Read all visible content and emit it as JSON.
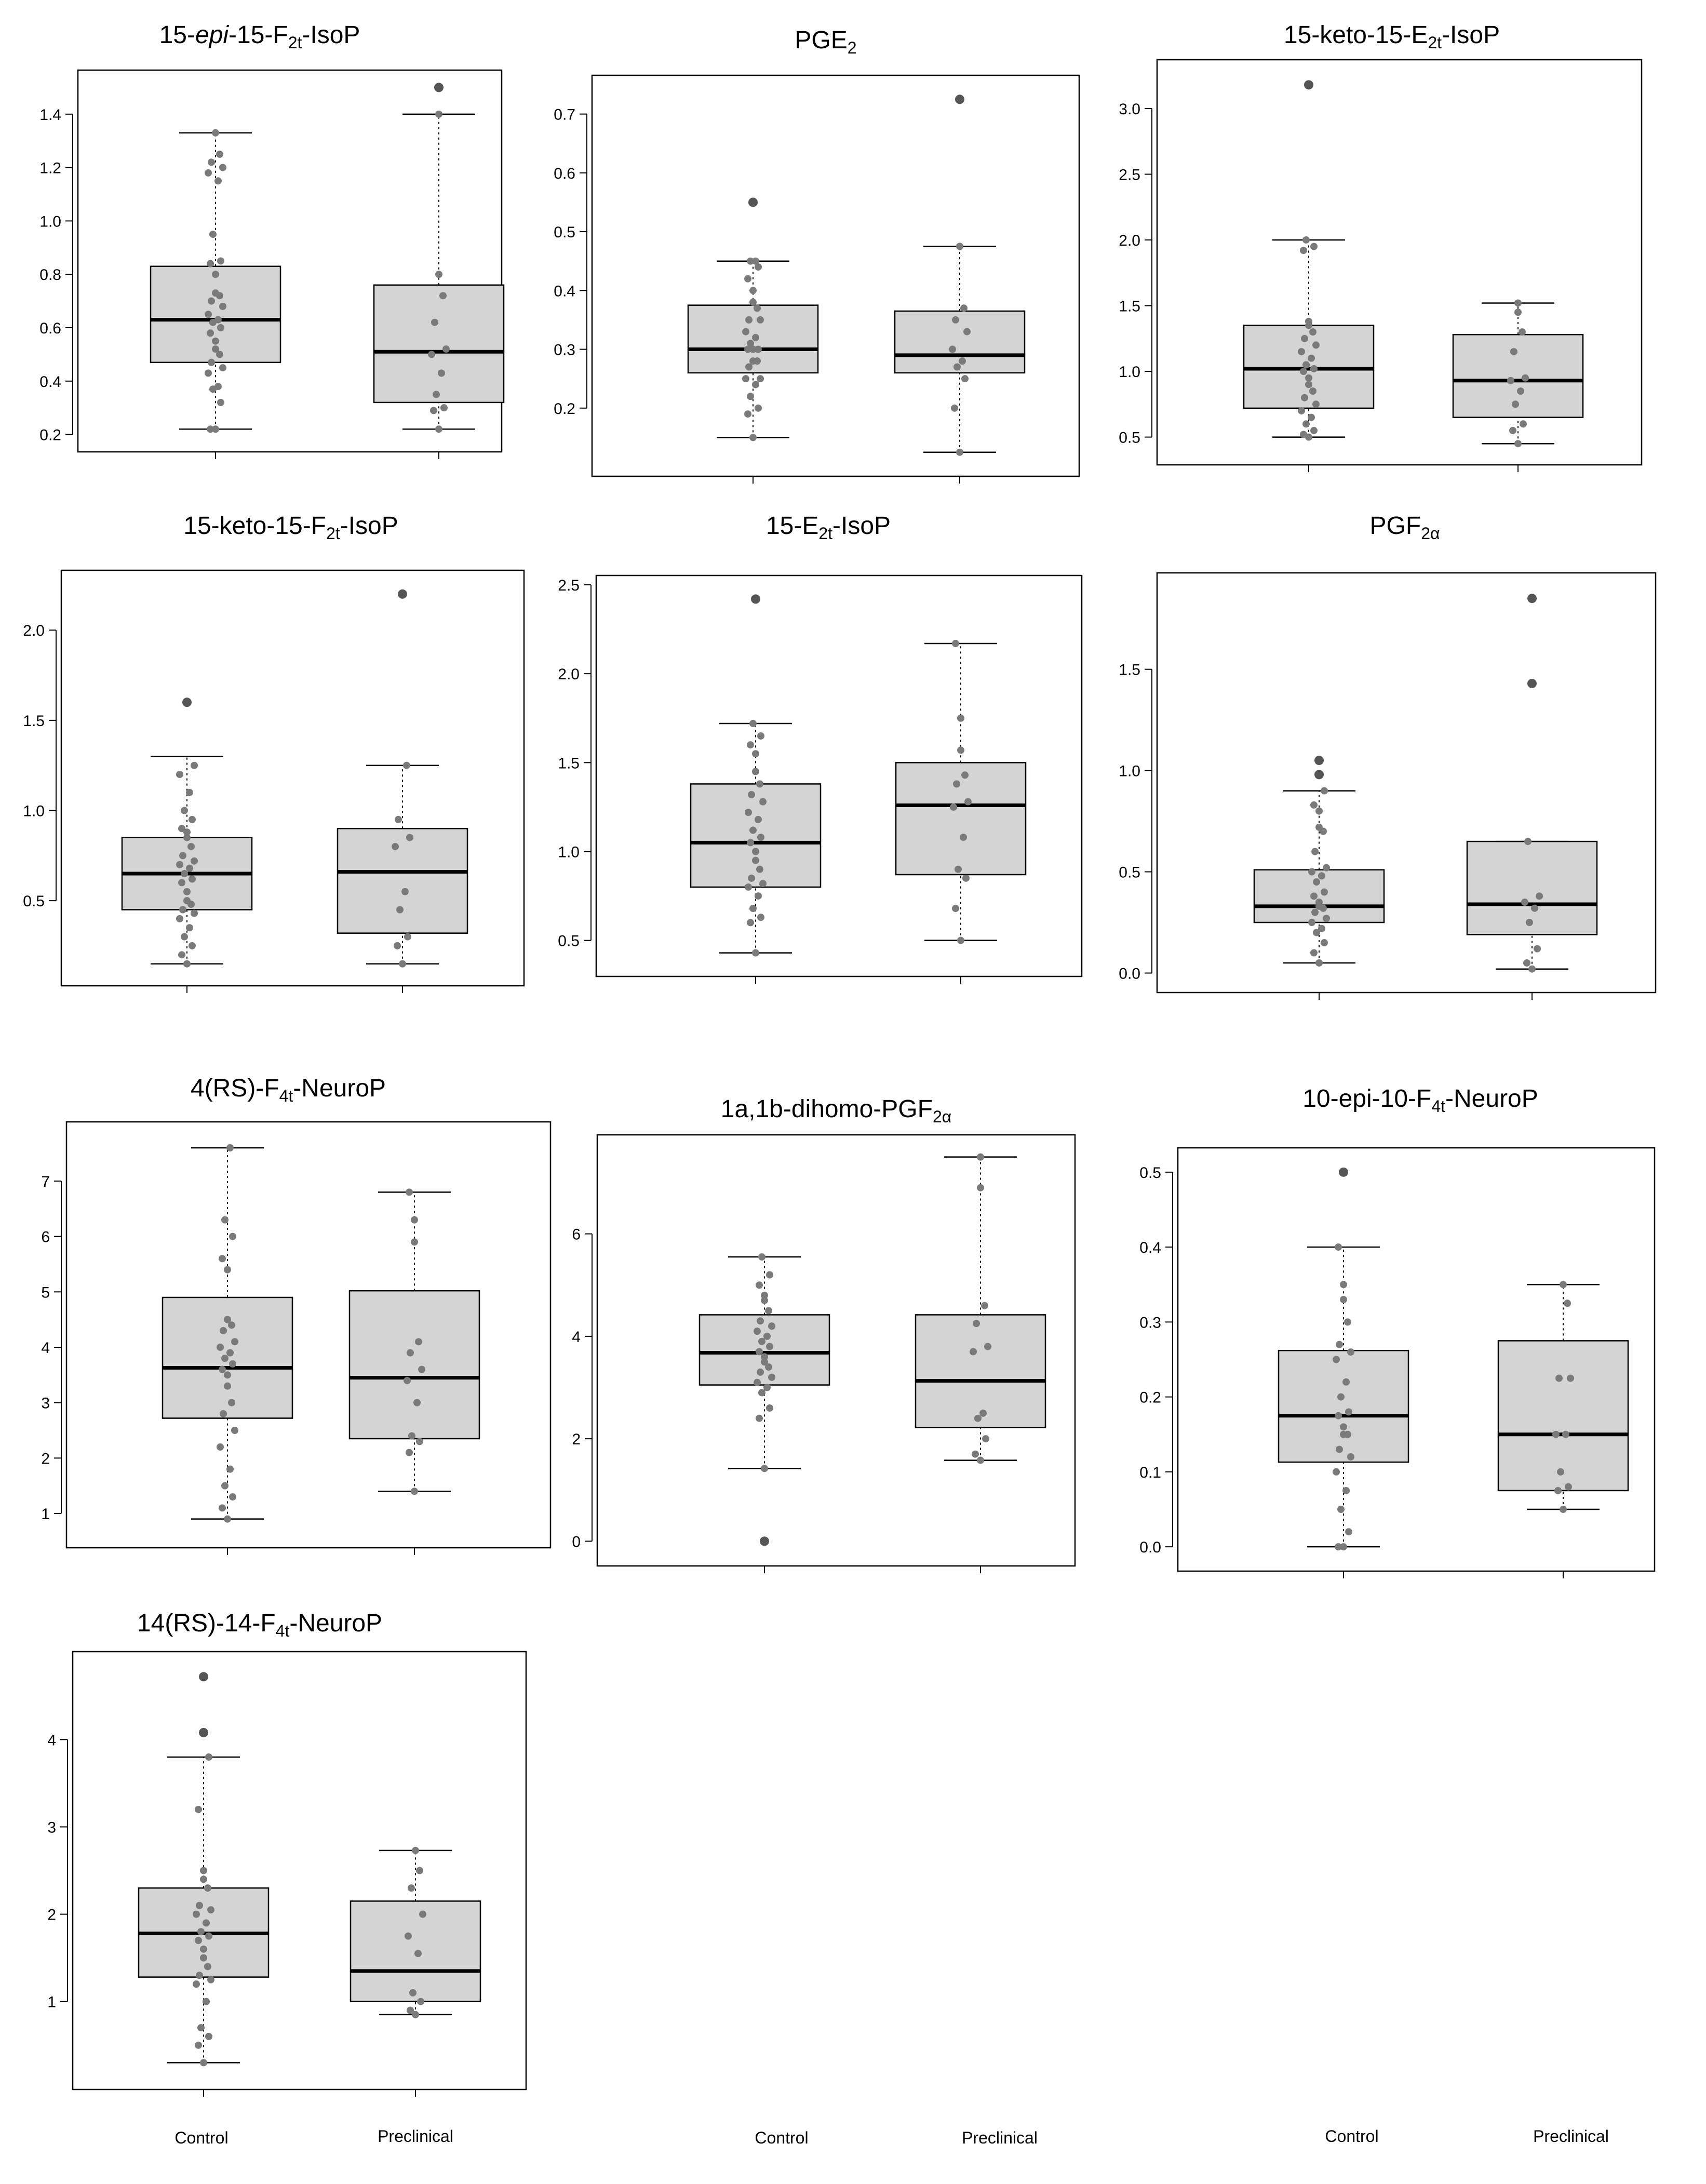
{
  "figure": {
    "group_labels": [
      "Control",
      "Preclinical"
    ]
  },
  "chart_data": [
    {
      "type": "box",
      "title": "15-epi-15-F2t-IsoP",
      "title_parts": [
        {
          "t": "15-"
        },
        {
          "t": "epi",
          "s": "em"
        },
        {
          "t": "-15-F"
        },
        {
          "t": "2t",
          "s": "sub"
        },
        {
          "t": "-IsoP"
        }
      ],
      "yticks": [
        0.2,
        0.4,
        0.6,
        0.8,
        1.0,
        1.2,
        1.4
      ],
      "ylim": [
        0.17,
        1.53
      ],
      "groups": [
        {
          "name": "Control",
          "q1": 0.47,
          "median": 0.63,
          "q3": 0.83,
          "whisker_low": 0.22,
          "whisker_high": 1.33,
          "outliers": [],
          "points": [
            0.22,
            0.22,
            0.32,
            0.37,
            0.38,
            0.43,
            0.45,
            0.47,
            0.5,
            0.52,
            0.55,
            0.58,
            0.6,
            0.62,
            0.63,
            0.65,
            0.68,
            0.7,
            0.72,
            0.73,
            0.8,
            0.84,
            0.85,
            0.95,
            1.15,
            1.18,
            1.2,
            1.22,
            1.25,
            1.33
          ]
        },
        {
          "name": "Preclinical",
          "q1": 0.32,
          "median": 0.51,
          "q3": 0.76,
          "whisker_low": 0.22,
          "whisker_high": 1.4,
          "outliers": [
            1.5
          ],
          "points": [
            0.22,
            0.29,
            0.3,
            0.35,
            0.43,
            0.5,
            0.52,
            0.62,
            0.72,
            0.8,
            1.4
          ]
        }
      ]
    },
    {
      "type": "box",
      "title": "PGE2",
      "title_parts": [
        {
          "t": "PGE"
        },
        {
          "t": "2",
          "s": "sub"
        }
      ],
      "yticks": [
        0.2,
        0.3,
        0.4,
        0.5,
        0.6,
        0.7
      ],
      "ylim": [
        0.1,
        0.75
      ],
      "groups": [
        {
          "name": "Control",
          "q1": 0.26,
          "median": 0.3,
          "q3": 0.375,
          "whisker_low": 0.15,
          "whisker_high": 0.45,
          "outliers": [
            0.55
          ],
          "points": [
            0.15,
            0.19,
            0.2,
            0.22,
            0.24,
            0.25,
            0.25,
            0.27,
            0.28,
            0.28,
            0.3,
            0.3,
            0.3,
            0.31,
            0.32,
            0.33,
            0.35,
            0.35,
            0.37,
            0.38,
            0.4,
            0.42,
            0.44,
            0.45,
            0.45
          ]
        },
        {
          "name": "Preclinical",
          "q1": 0.26,
          "median": 0.29,
          "q3": 0.365,
          "whisker_low": 0.125,
          "whisker_high": 0.475,
          "outliers": [
            0.725
          ],
          "points": [
            0.125,
            0.2,
            0.25,
            0.27,
            0.28,
            0.3,
            0.33,
            0.35,
            0.37,
            0.475
          ]
        }
      ]
    },
    {
      "type": "box",
      "title": "15-keto-15-E2t-IsoP",
      "title_parts": [
        {
          "t": "15-keto-15-E"
        },
        {
          "t": "2t",
          "s": "sub"
        },
        {
          "t": "-IsoP"
        }
      ],
      "yticks": [
        0.5,
        1.0,
        1.5,
        2.0,
        2.5,
        3.0
      ],
      "ylim": [
        0.36,
        3.3
      ],
      "groups": [
        {
          "name": "Control",
          "q1": 0.72,
          "median": 1.02,
          "q3": 1.35,
          "whisker_low": 0.5,
          "whisker_high": 2.0,
          "outliers": [
            3.18
          ],
          "points": [
            0.5,
            0.52,
            0.55,
            0.6,
            0.65,
            0.7,
            0.75,
            0.8,
            0.85,
            0.9,
            0.95,
            1.0,
            1.02,
            1.05,
            1.1,
            1.15,
            1.2,
            1.25,
            1.3,
            1.35,
            1.38,
            1.92,
            1.95,
            2.0
          ]
        },
        {
          "name": "Preclinical",
          "q1": 0.65,
          "median": 0.93,
          "q3": 1.28,
          "whisker_low": 0.45,
          "whisker_high": 1.52,
          "outliers": [],
          "points": [
            0.45,
            0.55,
            0.6,
            0.75,
            0.85,
            0.93,
            0.95,
            1.15,
            1.3,
            1.45,
            1.52
          ]
        }
      ]
    },
    {
      "type": "box",
      "title": "15-keto-15-F2t-IsoP",
      "title_parts": [
        {
          "t": "15-keto-15-F"
        },
        {
          "t": "2t",
          "s": "sub"
        },
        {
          "t": "-IsoP"
        }
      ],
      "yticks": [
        0.5,
        1.0,
        1.5,
        2.0
      ],
      "ylim": [
        0.08,
        2.28
      ],
      "groups": [
        {
          "name": "Control",
          "q1": 0.45,
          "median": 0.65,
          "q3": 0.85,
          "whisker_low": 0.15,
          "whisker_high": 1.3,
          "outliers": [
            1.6
          ],
          "points": [
            0.15,
            0.2,
            0.25,
            0.3,
            0.35,
            0.4,
            0.43,
            0.45,
            0.48,
            0.5,
            0.55,
            0.6,
            0.62,
            0.65,
            0.68,
            0.7,
            0.72,
            0.75,
            0.8,
            0.85,
            0.88,
            0.9,
            0.95,
            1.0,
            1.1,
            1.2,
            1.25
          ]
        },
        {
          "name": "Preclinical",
          "q1": 0.32,
          "median": 0.66,
          "q3": 0.9,
          "whisker_low": 0.15,
          "whisker_high": 1.25,
          "outliers": [
            2.2
          ],
          "points": [
            0.15,
            0.25,
            0.3,
            0.45,
            0.55,
            0.8,
            0.85,
            0.95,
            1.25
          ]
        }
      ]
    },
    {
      "type": "box",
      "title": "15-E2t-IsoP",
      "title_parts": [
        {
          "t": "15-E"
        },
        {
          "t": "2t",
          "s": "sub"
        },
        {
          "t": "-IsoP"
        }
      ],
      "yticks": [
        0.5,
        1.0,
        1.5,
        2.0,
        2.5
      ],
      "ylim": [
        0.35,
        2.5
      ],
      "groups": [
        {
          "name": "Control",
          "q1": 0.8,
          "median": 1.05,
          "q3": 1.38,
          "whisker_low": 0.43,
          "whisker_high": 1.72,
          "outliers": [
            2.42
          ],
          "points": [
            0.43,
            0.6,
            0.63,
            0.68,
            0.75,
            0.8,
            0.82,
            0.85,
            0.9,
            0.95,
            1.0,
            1.05,
            1.08,
            1.12,
            1.18,
            1.22,
            1.28,
            1.32,
            1.38,
            1.45,
            1.55,
            1.6,
            1.65,
            1.72
          ]
        },
        {
          "name": "Preclinical",
          "q1": 0.87,
          "median": 1.26,
          "q3": 1.5,
          "whisker_low": 0.5,
          "whisker_high": 2.17,
          "outliers": [],
          "points": [
            0.5,
            0.68,
            0.85,
            0.9,
            1.08,
            1.25,
            1.28,
            1.38,
            1.43,
            1.57,
            1.75,
            2.17
          ]
        }
      ]
    },
    {
      "type": "box",
      "title": "PGF2α",
      "title_parts": [
        {
          "t": "PGF"
        },
        {
          "t": "2α",
          "s": "sub"
        }
      ],
      "yticks": [
        0.0,
        0.5,
        1.0,
        1.5
      ],
      "ylim": [
        -0.05,
        1.93
      ],
      "groups": [
        {
          "name": "Control",
          "q1": 0.25,
          "median": 0.33,
          "q3": 0.51,
          "whisker_low": 0.05,
          "whisker_high": 0.9,
          "outliers": [
            1.05,
            0.98
          ],
          "points": [
            0.05,
            0.1,
            0.15,
            0.2,
            0.22,
            0.25,
            0.27,
            0.3,
            0.32,
            0.33,
            0.35,
            0.38,
            0.4,
            0.45,
            0.48,
            0.5,
            0.52,
            0.6,
            0.7,
            0.72,
            0.8,
            0.83,
            0.9
          ]
        },
        {
          "name": "Preclinical",
          "q1": 0.19,
          "median": 0.34,
          "q3": 0.65,
          "whisker_low": 0.02,
          "whisker_high": 0.65,
          "outliers": [
            1.43,
            1.85
          ],
          "points": [
            0.02,
            0.05,
            0.12,
            0.25,
            0.32,
            0.35,
            0.38,
            0.65
          ]
        }
      ]
    },
    {
      "type": "box",
      "title": "4(RS)-F4t-NeuroP",
      "title_parts": [
        {
          "t": "4(RS)-F"
        },
        {
          "t": "4t",
          "s": "sub"
        },
        {
          "t": "-NeuroP"
        }
      ],
      "yticks": [
        1,
        2,
        3,
        4,
        5,
        6,
        7
      ],
      "ylim": [
        0.55,
        7.9
      ],
      "groups": [
        {
          "name": "Control",
          "q1": 2.72,
          "median": 3.63,
          "q3": 4.9,
          "whisker_low": 0.9,
          "whisker_high": 7.6,
          "outliers": [],
          "points": [
            0.9,
            1.1,
            1.3,
            1.5,
            1.8,
            2.2,
            2.5,
            2.8,
            3.0,
            3.3,
            3.5,
            3.6,
            3.7,
            3.8,
            3.9,
            4.0,
            4.1,
            4.3,
            4.4,
            4.5,
            5.4,
            5.6,
            6.0,
            6.3,
            7.6
          ]
        },
        {
          "name": "Preclinical",
          "q1": 2.35,
          "median": 3.45,
          "q3": 5.02,
          "whisker_low": 1.4,
          "whisker_high": 6.8,
          "outliers": [],
          "points": [
            1.4,
            2.1,
            2.3,
            2.4,
            3.0,
            3.4,
            3.6,
            3.9,
            4.1,
            5.9,
            6.3,
            6.8
          ]
        }
      ]
    },
    {
      "type": "box",
      "title": "1a,1b-dihomo-PGF2α",
      "title_parts": [
        {
          "t": "1a,1b-dihomo-PGF"
        },
        {
          "t": "2α",
          "s": "sub"
        }
      ],
      "yticks": [
        0,
        2,
        4,
        6
      ],
      "ylim": [
        -0.3,
        7.75
      ],
      "groups": [
        {
          "name": "Control",
          "q1": 3.05,
          "median": 3.68,
          "q3": 4.42,
          "whisker_low": 1.42,
          "whisker_high": 5.55,
          "outliers": [
            0.0
          ],
          "points": [
            1.42,
            2.4,
            2.6,
            2.9,
            3.0,
            3.1,
            3.2,
            3.3,
            3.4,
            3.5,
            3.6,
            3.7,
            3.8,
            3.9,
            4.0,
            4.1,
            4.2,
            4.3,
            4.5,
            4.7,
            4.8,
            5.0,
            5.2,
            5.55
          ]
        },
        {
          "name": "Preclinical",
          "q1": 2.22,
          "median": 3.13,
          "q3": 4.42,
          "whisker_low": 1.58,
          "whisker_high": 7.5,
          "outliers": [],
          "points": [
            1.58,
            1.7,
            2.0,
            2.4,
            2.5,
            3.7,
            3.8,
            4.25,
            4.6,
            6.9,
            7.5
          ]
        }
      ]
    },
    {
      "type": "box",
      "title": "10-epi-10-F4t-NeuroP",
      "title_parts": [
        {
          "t": "10-epi-10-F"
        },
        {
          "t": "4t",
          "s": "sub"
        },
        {
          "t": "-NeuroP"
        }
      ],
      "yticks": [
        0.0,
        0.1,
        0.2,
        0.3,
        0.4,
        0.5
      ],
      "ylim": [
        -0.02,
        0.52
      ],
      "groups": [
        {
          "name": "Control",
          "q1": 0.113,
          "median": 0.175,
          "q3": 0.262,
          "whisker_low": 0.0,
          "whisker_high": 0.4,
          "outliers": [
            0.5
          ],
          "points": [
            0.0,
            0.0,
            0.02,
            0.05,
            0.075,
            0.1,
            0.12,
            0.13,
            0.15,
            0.15,
            0.16,
            0.175,
            0.18,
            0.2,
            0.22,
            0.25,
            0.26,
            0.27,
            0.3,
            0.33,
            0.35,
            0.4
          ]
        },
        {
          "name": "Preclinical",
          "q1": 0.075,
          "median": 0.15,
          "q3": 0.275,
          "whisker_low": 0.05,
          "whisker_high": 0.35,
          "outliers": [],
          "points": [
            0.05,
            0.075,
            0.08,
            0.1,
            0.15,
            0.15,
            0.225,
            0.225,
            0.325,
            0.35
          ]
        }
      ]
    },
    {
      "type": "box",
      "title": "14(RS)-14-F4t-NeuroP",
      "title_parts": [
        {
          "t": "14(RS)-14-F"
        },
        {
          "t": "4t",
          "s": "sub"
        },
        {
          "t": "-NeuroP"
        }
      ],
      "yticks": [
        1,
        2,
        3,
        4
      ],
      "ylim": [
        0.1,
        4.9
      ],
      "groups": [
        {
          "name": "Control",
          "q1": 1.28,
          "median": 1.78,
          "q3": 2.3,
          "whisker_low": 0.3,
          "whisker_high": 3.8,
          "outliers": [
            4.72,
            4.08
          ],
          "points": [
            0.3,
            0.5,
            0.6,
            0.7,
            1.0,
            1.2,
            1.25,
            1.3,
            1.4,
            1.5,
            1.6,
            1.7,
            1.75,
            1.8,
            1.9,
            2.0,
            2.05,
            2.1,
            2.3,
            2.4,
            2.5,
            3.2,
            3.8
          ]
        },
        {
          "name": "Preclinical",
          "q1": 1.0,
          "median": 1.35,
          "q3": 2.15,
          "whisker_low": 0.85,
          "whisker_high": 2.73,
          "outliers": [],
          "points": [
            0.85,
            0.9,
            1.0,
            1.1,
            1.55,
            1.75,
            2.0,
            2.3,
            2.5,
            2.73
          ]
        }
      ]
    }
  ]
}
